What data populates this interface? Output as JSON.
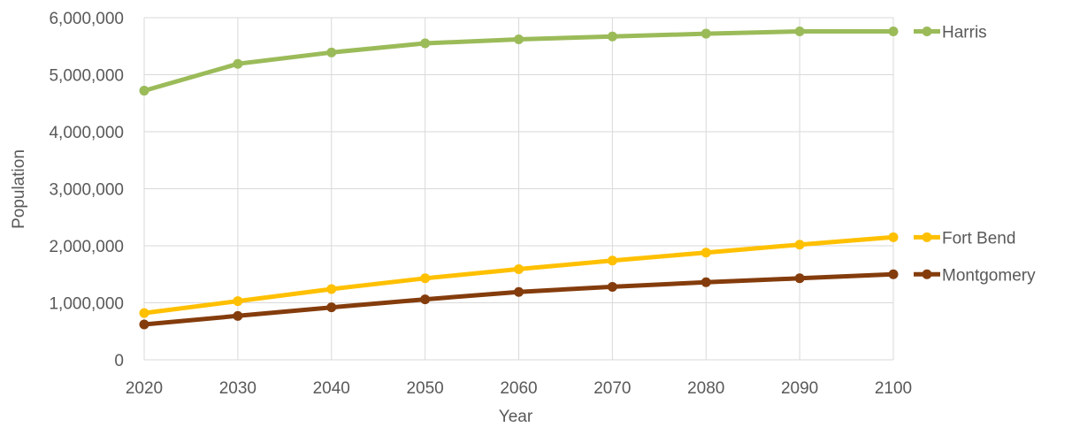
{
  "chart_data": {
    "type": "line",
    "title": "",
    "xlabel": "Year",
    "ylabel": "Population",
    "categories": [
      "2020",
      "2030",
      "2040",
      "2050",
      "2060",
      "2070",
      "2080",
      "2090",
      "2100"
    ],
    "y_ticks": [
      "0",
      "1,000,000",
      "2,000,000",
      "3,000,000",
      "4,000,000",
      "5,000,000",
      "6,000,000"
    ],
    "ylim": [
      0,
      6000000
    ],
    "grid": true,
    "legend_position": "right",
    "series": [
      {
        "name": "Harris",
        "color": "#9bbb59",
        "values": [
          4720000,
          5190000,
          5390000,
          5550000,
          5620000,
          5670000,
          5720000,
          5760000,
          5760000
        ]
      },
      {
        "name": "Fort Bend",
        "color": "#ffc000",
        "values": [
          820000,
          1030000,
          1240000,
          1430000,
          1590000,
          1740000,
          1880000,
          2020000,
          2150000
        ]
      },
      {
        "name": "Montgomery",
        "color": "#843c0c",
        "values": [
          620000,
          770000,
          920000,
          1060000,
          1190000,
          1280000,
          1360000,
          1430000,
          1500000
        ]
      }
    ]
  }
}
